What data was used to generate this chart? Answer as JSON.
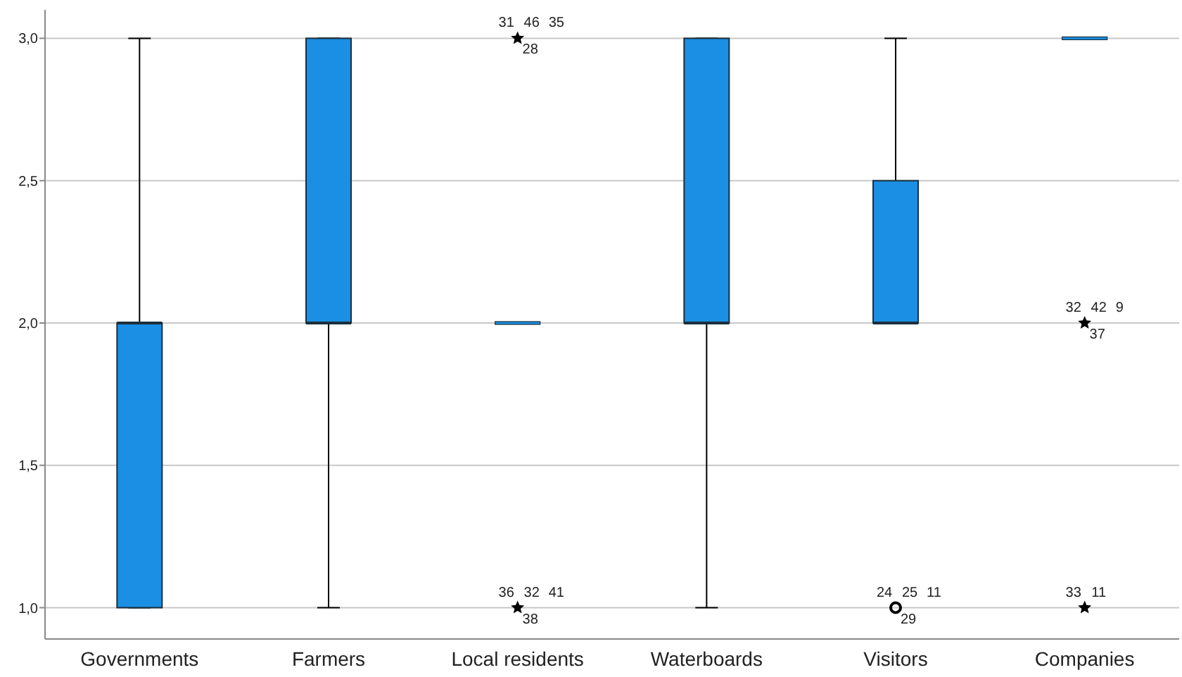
{
  "chart_data": {
    "type": "box",
    "categories": [
      "Governments",
      "Farmers",
      "Local residents",
      "Waterboards",
      "Visitors",
      "Companies"
    ],
    "color": "#1a8fe3",
    "boxes": [
      {
        "low": 1,
        "q1": 1,
        "median": 2,
        "q3": 2,
        "high": 3
      },
      {
        "low": 1,
        "q1": 2,
        "median": 2,
        "q3": 3,
        "high": 3
      },
      {
        "low": 2,
        "q1": 2,
        "median": 2,
        "q3": 2,
        "high": 2
      },
      {
        "low": 1,
        "q1": 2,
        "median": 2,
        "q3": 3,
        "high": 3
      },
      {
        "low": 2,
        "q1": 2,
        "median": 2,
        "q3": 2.5,
        "high": 3
      },
      {
        "low": 3,
        "q1": 3,
        "median": 3,
        "q3": 3,
        "high": 3
      }
    ],
    "series": [
      {
        "type": "scatter",
        "marker": "star",
        "color": "#000000",
        "x": [
          "Local residents",
          "Local residents",
          "Companies",
          "Companies"
        ],
        "values": [
          3,
          1,
          2,
          1
        ]
      },
      {
        "type": "scatter",
        "marker": "circle",
        "color": "#000000",
        "x": [
          "Visitors"
        ],
        "values": [
          1
        ]
      }
    ],
    "ylim": [
      0.89,
      3.1
    ],
    "yticks": [
      {
        "value": 1,
        "label": "1,0"
      },
      {
        "value": 1.5,
        "label": "1,5"
      },
      {
        "value": 2,
        "label": "2,0"
      },
      {
        "value": 2.5,
        "label": "2,5"
      },
      {
        "value": 3,
        "label": "3,0"
      }
    ],
    "grid": "y",
    "annotations": [
      {
        "text": "31",
        "x": "Local residents",
        "y": 3
      },
      {
        "text": "46",
        "x": "Local residents",
        "y": 3
      },
      {
        "text": "28",
        "x": "Local residents",
        "y": 3
      },
      {
        "text": "35",
        "x": "Local residents",
        "y": 3
      },
      {
        "text": "36",
        "x": "Local residents",
        "y": 1
      },
      {
        "text": "32",
        "x": "Local residents",
        "y": 1
      },
      {
        "text": "38",
        "x": "Local residents",
        "y": 1
      },
      {
        "text": "41",
        "x": "Local residents",
        "y": 1
      },
      {
        "text": "24",
        "x": "Visitors",
        "y": 1
      },
      {
        "text": "25",
        "x": "Visitors",
        "y": 1
      },
      {
        "text": "29",
        "x": "Visitors",
        "y": 1
      },
      {
        "text": "11",
        "x": "Visitors",
        "y": 1
      },
      {
        "text": "32",
        "x": "Companies",
        "y": 2
      },
      {
        "text": "42",
        "x": "Companies",
        "y": 2
      },
      {
        "text": "37",
        "x": "Companies",
        "y": 2
      },
      {
        "text": "9",
        "x": "Companies",
        "y": 2
      },
      {
        "text": "33",
        "x": "Companies",
        "y": 1
      },
      {
        "text": "11",
        "x": "Companies",
        "y": 1
      }
    ]
  }
}
